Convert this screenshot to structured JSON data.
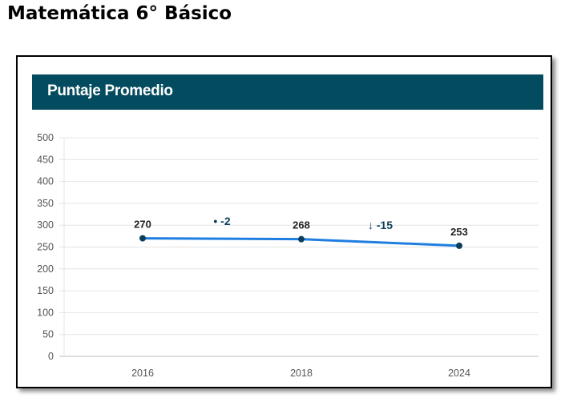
{
  "page": {
    "title": "Matemática 6° Básico"
  },
  "card": {
    "header_title": "Puntaje Promedio"
  },
  "chart_data": {
    "type": "line",
    "categories": [
      "2016",
      "2018",
      "2024"
    ],
    "values": [
      270,
      268,
      253
    ],
    "ylim": [
      0,
      500
    ],
    "yticks": [
      0,
      50,
      100,
      150,
      200,
      250,
      300,
      350,
      400,
      450,
      500
    ],
    "grid": true,
    "legend": "none",
    "line_color": "#1f7fe0",
    "point_color": "#0a3e5a",
    "annotations": [
      {
        "text": "• -2",
        "between": [
          "2016",
          "2018"
        ]
      },
      {
        "text": "↓ -15",
        "between": [
          "2018",
          "2024"
        ]
      }
    ]
  }
}
